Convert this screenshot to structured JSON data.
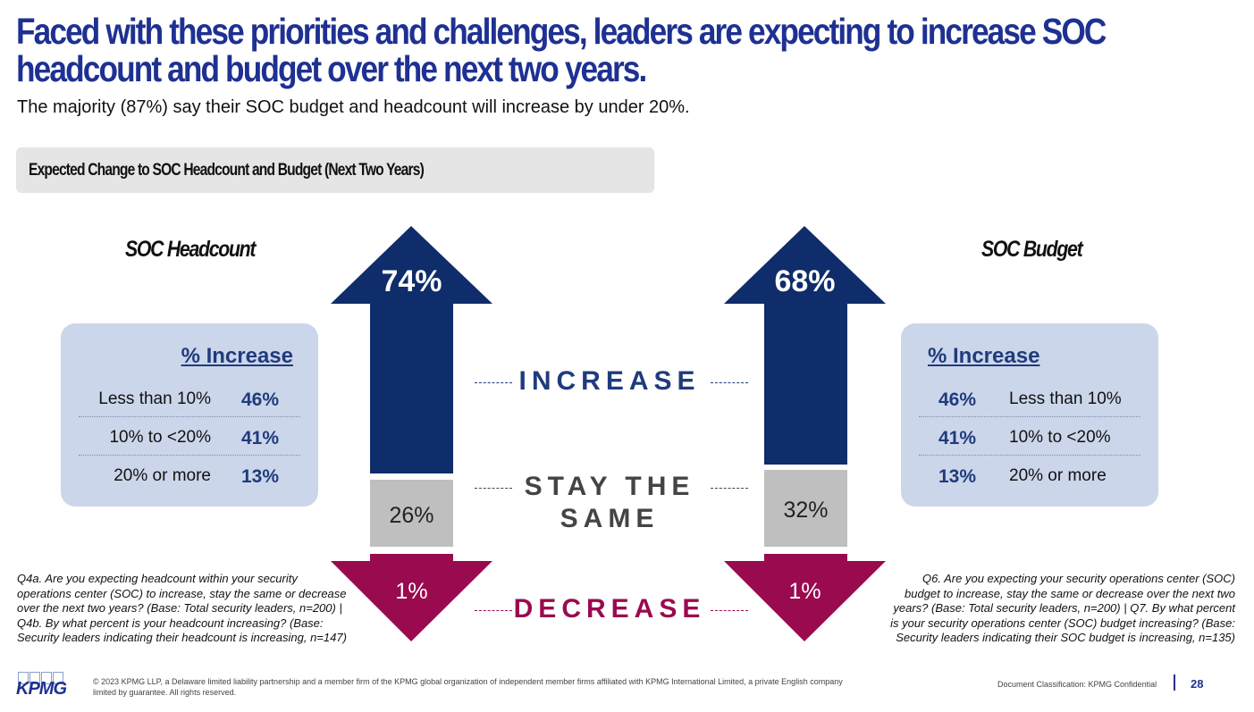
{
  "title": "Faced with these priorities and challenges, leaders are expecting to increase SOC headcount and budget over the next two years.",
  "subtitle": "The majority (87%) say their SOC budget and headcount will increase by under 20%.",
  "section_label": "Expected Change to SOC Headcount and Budget (Next Two Years)",
  "headcount": {
    "heading": "SOC Headcount",
    "increase": "74%",
    "same": "26%",
    "decrease": "1%",
    "panel_title": "% Increase",
    "rows": [
      {
        "label": "Less than 10%",
        "value": "46%"
      },
      {
        "label": "10% to <20%",
        "value": "41%"
      },
      {
        "label": "20% or more",
        "value": "13%"
      }
    ],
    "note": "Q4a. Are you expecting headcount within your security operations center (SOC) to increase, stay the same or decrease over the next two years? (Base: Total security leaders, n=200) | Q4b. By what percent is your headcount increasing? (Base: Security leaders indicating their headcount is increasing, n=147)"
  },
  "budget": {
    "heading": "SOC Budget",
    "increase": "68%",
    "same": "32%",
    "decrease": "1%",
    "panel_title": "% Increase",
    "rows": [
      {
        "label": "Less than 10%",
        "value": "46%"
      },
      {
        "label": "10% to <20%",
        "value": "41%"
      },
      {
        "label": "20% or more",
        "value": "13%"
      }
    ],
    "note": "Q6. Are you expecting your security operations center (SOC) budget to increase, stay the same or decrease over the next two years? (Base: Total security leaders, n=200) | Q7. By what percent is your security operations center (SOC) budget increasing? (Base: Security leaders indicating their SOC budget is increasing, n=135)"
  },
  "categories": {
    "increase": "INCREASE",
    "same_1": "STAY THE",
    "same_2": "SAME",
    "decrease": "DECREASE"
  },
  "colors": {
    "increase": "#0f2c6b",
    "same": "#bfbfbf",
    "decrease": "#9a0a4e",
    "accent": "#1e3192"
  },
  "footer": {
    "logo": "KPMG",
    "copyright": "© 2023 KPMG LLP, a Delaware limited liability partnership and a member firm of the KPMG global organization of independent member firms affiliated with KPMG International Limited, a private English company limited by guarantee. All rights reserved.",
    "classification": "Document Classification: KPMG Confidential",
    "page": "28"
  }
}
